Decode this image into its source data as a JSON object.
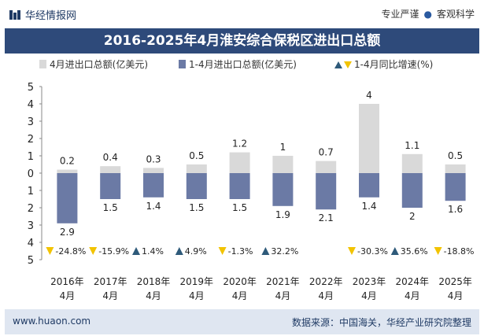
{
  "header": {
    "brand": "华经情报网",
    "slogan_left": "专业严谨",
    "slogan_dot": "●",
    "slogan_right": "客观科学"
  },
  "footer": {
    "url": "www.huaon.com",
    "source": "数据来源：中国海关，华经产业研究院整理"
  },
  "colors": {
    "bar_month": "#d9d9d9",
    "bar_cumulative": "#6b7aa5",
    "up_marker": "#2e5a7a",
    "down_marker": "#f2c300",
    "title_bg": "#2e4a7a"
  },
  "chart_data": {
    "type": "bar",
    "title": "2016-2025年4月淮安综合保税区进出口总额",
    "categories": [
      "2016年\n4月",
      "2017年\n4月",
      "2018年\n4月",
      "2019年\n4月",
      "2020年\n4月",
      "2021年\n4月",
      "2022年\n4月",
      "2023年\n4月",
      "2024年\n4月",
      "2025年\n4月"
    ],
    "series": [
      {
        "name": "4月进出口总额(亿美元)",
        "values": [
          0.2,
          0.4,
          0.3,
          0.5,
          1.2,
          1,
          0.7,
          4,
          1.1,
          0.5
        ],
        "direction": "up"
      },
      {
        "name": "1-4月进出口总额(亿美元)",
        "values": [
          2.9,
          1.5,
          1.4,
          1.5,
          1.5,
          1.9,
          2.1,
          1.4,
          2,
          1.6
        ],
        "direction": "down"
      }
    ],
    "growth": {
      "name": "1-4月同比增速(%)",
      "values": [
        -24.8,
        -15.9,
        1.4,
        4.9,
        -1.3,
        32.2,
        null,
        -30.3,
        35.6,
        -18.8
      ],
      "labels": [
        "-24.8%",
        "-15.9%",
        "1.4%",
        "4.9%",
        "-1.3%",
        "32.2%",
        "",
        "-30.3%",
        "35.6%",
        "-18.8%"
      ]
    },
    "yaxis_ticks": [
      "5",
      "4",
      "3",
      "2",
      "1",
      "0",
      "1",
      "2",
      "3",
      "4",
      "5"
    ],
    "ylim": [
      -5,
      5
    ],
    "legend_position": "top",
    "grid": false
  }
}
